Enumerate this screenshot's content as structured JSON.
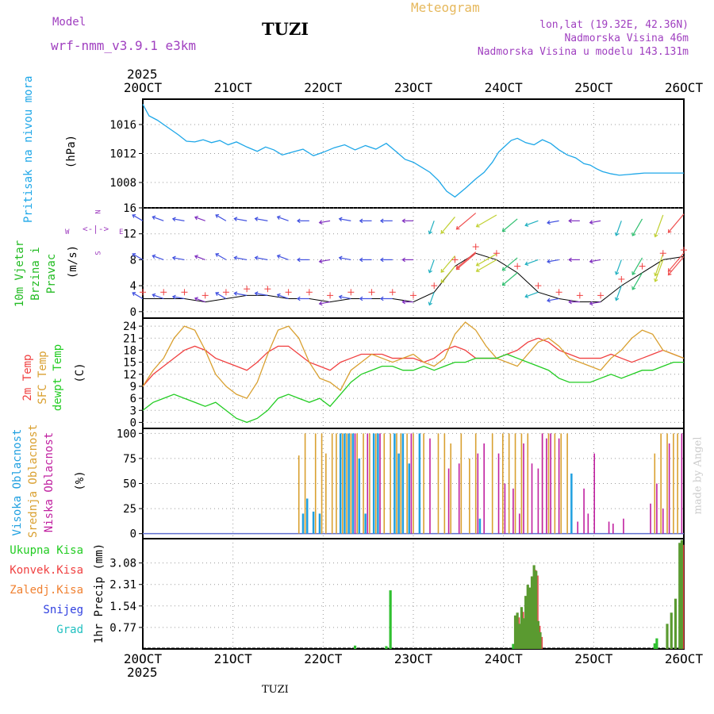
{
  "header": {
    "model_label": "Model",
    "model_name": "wrf-nmm_v3.9.1 e3km",
    "station": "TUZI",
    "meteogram": "Meteogram",
    "lonlat": "lon,lat (19.32E, 42.36N)",
    "elevation": "Nadmorska Visina 46m",
    "model_elevation": "Nadmorska Visina u modelu 143.131m",
    "year_top": "2025",
    "year_bottom": "2025",
    "footer_station": "TUZI",
    "credit": "made by Angel"
  },
  "colors": {
    "pressure": "#1ea7e8",
    "temp2m": "#f04040",
    "sfc": "#d9a030",
    "dewpt": "#22cc22",
    "high_cloud": "#20a0e0",
    "mid_cloud": "#d9a030",
    "low_cloud": "#c020a0",
    "precip": "#30c030",
    "convective": "#f04040",
    "wind_label": "#22bb22",
    "dir_legend": "#a040c0"
  },
  "chart_data": [
    {
      "type": "line",
      "id": "pressure",
      "title": "Pritisak na nivou mora",
      "ylabel": "(hPa)",
      "x": [
        0,
        0.3,
        0.7,
        1.2,
        1.7,
        2.1,
        2.5,
        2.9,
        3.3,
        3.7,
        4.1,
        4.5,
        5,
        5.5,
        5.9,
        6.3,
        6.7,
        7.2,
        7.7,
        8.2,
        8.7,
        9.2,
        9.7,
        10.2,
        10.7,
        11.2,
        11.7,
        12.2,
        12.6,
        13,
        13.4,
        13.8,
        14.2,
        14.6,
        15,
        15.5,
        16,
        16.4,
        16.8,
        17.1,
        17.4,
        17.7,
        18,
        18.4,
        18.8,
        19.2,
        19.6,
        20,
        20.4,
        20.8,
        21.2,
        21.5,
        21.8,
        22.1,
        22.5,
        22.9,
        23.3,
        23.7,
        24.1,
        24.6,
        25,
        25.5,
        26
      ],
      "values": [
        1018.8,
        1017.2,
        1016.6,
        1015.6,
        1014.6,
        1013.7,
        1013.6,
        1013.9,
        1013.5,
        1013.8,
        1013.2,
        1013.6,
        1012.9,
        1012.3,
        1012.9,
        1012.5,
        1011.8,
        1012.2,
        1012.6,
        1011.7,
        1012.2,
        1012.8,
        1013.2,
        1012.5,
        1013.1,
        1012.6,
        1013.4,
        1012.2,
        1011.2,
        1010.8,
        1010.1,
        1009.4,
        1008.3,
        1006.8,
        1006,
        1007.2,
        1008.5,
        1009.4,
        1010.8,
        1012.2,
        1013,
        1013.8,
        1014.1,
        1013.5,
        1013.2,
        1013.9,
        1013.4,
        1012.5,
        1011.8,
        1011.4,
        1010.6,
        1010.4,
        1009.9,
        1009.5,
        1009.2,
        1009.0,
        1009.1,
        1009.2,
        1009.3,
        1009.3,
        1009.3,
        1009.3,
        1009.3
      ],
      "ylim": [
        1004.5,
        1019.5
      ],
      "yticks": [
        1008,
        1012,
        1016
      ]
    },
    {
      "type": "wind",
      "id": "wind",
      "title": "10m Vjetar Brzina i Pravac",
      "ylabel": "(m/s)",
      "x": [
        0,
        1,
        2,
        3,
        4,
        5,
        6,
        7,
        8,
        9,
        10,
        11,
        12,
        13,
        14,
        15,
        16,
        17,
        18,
        19,
        20,
        21,
        22,
        23,
        24,
        25,
        26
      ],
      "speed": [
        2,
        2,
        2,
        1.5,
        2,
        2.5,
        2.5,
        2,
        2,
        1.5,
        2,
        2,
        2,
        1.5,
        3,
        7,
        9,
        8,
        6,
        3,
        2,
        1.5,
        1.5,
        4,
        6,
        8,
        8.5
      ],
      "direction_deg": [
        300,
        290,
        280,
        290,
        300,
        280,
        280,
        290,
        270,
        260,
        280,
        270,
        270,
        270,
        200,
        220,
        230,
        240,
        230,
        250,
        260,
        270,
        260,
        200,
        210,
        200,
        220
      ],
      "ylim": [
        -1,
        16
      ],
      "yticks": [
        0,
        4,
        8,
        12,
        16
      ],
      "direction_legend": {
        "north": "N",
        "west": "W",
        "east": "E",
        "south": "S"
      }
    },
    {
      "type": "line",
      "id": "temperature",
      "title_2m": "2m Temp",
      "title_sfc": "SFC Temp",
      "title_dew": "dewpt Temp",
      "ylabel": "(C)",
      "x": [
        0,
        0.5,
        1,
        1.5,
        2,
        2.5,
        3,
        3.5,
        4,
        4.5,
        5,
        5.5,
        6,
        6.5,
        7,
        7.5,
        8,
        8.5,
        9,
        9.5,
        10,
        10.5,
        11,
        11.5,
        12,
        12.5,
        13,
        13.5,
        14,
        14.5,
        15,
        15.5,
        16,
        16.5,
        17,
        17.5,
        18,
        18.5,
        19,
        19.5,
        20,
        20.5,
        21,
        21.5,
        22,
        22.5,
        23,
        23.5,
        24,
        24.5,
        25,
        25.5,
        26
      ],
      "series": [
        {
          "name": "2m Temp",
          "values": [
            9,
            12,
            14,
            16,
            18,
            19,
            18,
            16,
            15,
            14,
            13,
            15,
            17.5,
            19,
            19,
            17,
            15,
            14,
            13,
            15,
            16,
            17,
            17,
            17,
            16,
            16,
            16,
            15,
            16,
            18,
            19,
            18,
            16,
            16,
            16,
            17,
            18,
            20,
            21,
            20,
            18,
            17,
            16,
            16,
            16,
            17,
            16,
            15,
            16,
            17,
            18,
            17,
            16
          ]
        },
        {
          "name": "SFC Temp",
          "values": [
            9,
            13,
            16,
            21,
            24,
            23,
            18,
            12,
            9,
            7,
            6,
            10,
            17,
            23,
            24,
            21,
            15,
            11,
            10,
            8,
            13,
            15,
            17,
            16,
            15,
            16,
            17,
            15,
            14,
            16,
            22,
            25,
            23,
            19,
            16,
            15,
            14,
            17,
            20,
            21,
            19,
            16,
            15,
            14,
            13,
            16,
            18,
            21,
            23,
            22,
            18,
            17,
            16
          ]
        },
        {
          "name": "dewpt Temp",
          "values": [
            3,
            5,
            6,
            7,
            6,
            5,
            4,
            5,
            3,
            1,
            0,
            1,
            3,
            6,
            7,
            6,
            5,
            6,
            4,
            7,
            10,
            12,
            13,
            14,
            14,
            13,
            13,
            14,
            13,
            14,
            15,
            15,
            16,
            16,
            16,
            17,
            16,
            15,
            14,
            13,
            11,
            10,
            10,
            10,
            11,
            12,
            11,
            12,
            13,
            13,
            14,
            15,
            15
          ]
        }
      ],
      "ylim": [
        -1.5,
        26
      ],
      "yticks": [
        0,
        3,
        6,
        9,
        12,
        15,
        18,
        21,
        24
      ]
    },
    {
      "type": "bar",
      "id": "cloud",
      "title_high": "Visoka Oblacnost",
      "title_mid": "Srednja Oblacnost",
      "title_low": "Niska Oblacnost",
      "ylabel": "(%)",
      "series": [
        {
          "name": "Visoka Oblacnost",
          "x": [
            7.7,
            7.9,
            8.2,
            8.5,
            9.5,
            9.7,
            9.9,
            10.1,
            10.4,
            10.7,
            11.1,
            11.3,
            12.1,
            12.3,
            12.5,
            12.8,
            13.3,
            16.2,
            20.6
          ],
          "values": [
            20,
            35,
            22,
            20,
            100,
            100,
            100,
            100,
            75,
            20,
            100,
            100,
            100,
            80,
            100,
            70,
            100,
            15,
            60
          ]
        },
        {
          "name": "Srednja Oblacnost",
          "x": [
            7.5,
            7.8,
            8.3,
            8.6,
            8.8,
            9.1,
            9.3,
            9.6,
            9.8,
            10,
            10.3,
            10.6,
            10.9,
            11.2,
            11.6,
            11.9,
            12.2,
            12.4,
            12.7,
            13,
            13.5,
            14.2,
            14.5,
            14.8,
            15.3,
            15.7,
            16,
            16.8,
            17.3,
            17.6,
            17.9,
            18.2,
            18.5,
            19.2,
            19.5,
            19.8,
            20.1,
            20.4,
            24.6,
            24.9,
            25.2,
            25.5,
            25.7
          ],
          "values": [
            78,
            100,
            100,
            100,
            80,
            100,
            100,
            100,
            100,
            100,
            100,
            100,
            100,
            100,
            100,
            100,
            100,
            100,
            100,
            100,
            100,
            100,
            100,
            90,
            100,
            75,
            100,
            100,
            100,
            100,
            100,
            100,
            100,
            100,
            100,
            100,
            100,
            100,
            80,
            100,
            100,
            100,
            100
          ]
        },
        {
          "name": "Niska Oblacnost",
          "x": [
            10.2,
            10.8,
            11.4,
            12.9,
            13.8,
            14.7,
            15.2,
            16.1,
            16.4,
            17.1,
            17.4,
            17.8,
            18.1,
            18.3,
            18.7,
            19,
            19.2,
            19.4,
            19.6,
            20,
            20.9,
            21.2,
            21.4,
            21.7,
            22.4,
            22.6,
            23.1,
            24.4,
            24.7,
            25,
            25.3,
            25.9
          ],
          "values": [
            100,
            100,
            100,
            100,
            95,
            65,
            70,
            80,
            90,
            80,
            50,
            45,
            20,
            90,
            70,
            65,
            100,
            95,
            100,
            95,
            12,
            45,
            20,
            80,
            12,
            10,
            15,
            30,
            50,
            25,
            90,
            100
          ]
        }
      ],
      "ylim": [
        -5,
        105
      ],
      "yticks": [
        0,
        25,
        50,
        75,
        100
      ]
    },
    {
      "type": "bar",
      "id": "precip",
      "title_total": "Ukupna Kisa",
      "title_conv": "Konvek.Kisa",
      "title_frozen": "Zaledj.Kisa",
      "title_snow": "Snijeg",
      "title_grad": "Grad",
      "ylabel": "1hr Precip (mm)",
      "x": [
        10.2,
        11.7,
        11.9,
        17.8,
        17.9,
        18.0,
        18.1,
        18.2,
        18.3,
        18.4,
        18.5,
        18.6,
        18.7,
        18.8,
        18.9,
        19,
        19.1,
        24.6,
        24.7,
        25.2,
        25.4,
        25.6,
        25.8,
        25.9
      ],
      "values": [
        0.12,
        0.1,
        2.1,
        0.18,
        1.2,
        1.3,
        0.9,
        1.5,
        1.1,
        1.9,
        2.3,
        2.2,
        2.6,
        3.0,
        2.8,
        1.0,
        0.6,
        0.2,
        0.38,
        0.9,
        1.3,
        1.8,
        3.8,
        3.9
      ],
      "ylim": [
        0,
        3.95
      ],
      "yticks": [
        0.77,
        1.54,
        2.31,
        3.08
      ]
    }
  ],
  "xaxis": {
    "labels": [
      "20OCT",
      "21OCT",
      "22OCT",
      "23OCT",
      "24OCT",
      "25OCT",
      "26OCT"
    ],
    "range_days": 6,
    "steps_per_day": 4.333
  }
}
